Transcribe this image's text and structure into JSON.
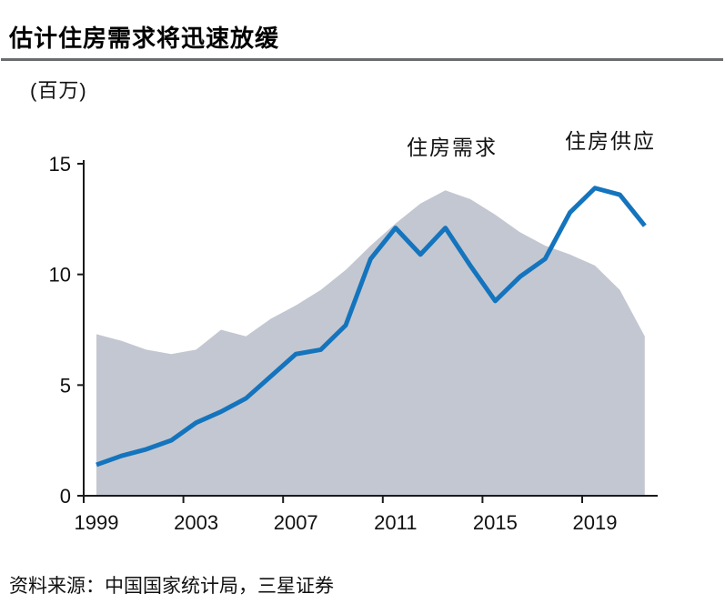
{
  "page": {
    "title": "估计住房需求将迅速放缓",
    "unit_label": "(百万)",
    "source": "资料来源：中国国家统计局，三星证券"
  },
  "chart_data": {
    "type": "area",
    "title": "估计住房需求将迅速放缓",
    "xlabel": "",
    "ylabel": "(百万)",
    "x": [
      1999,
      2000,
      2001,
      2002,
      2003,
      2004,
      2005,
      2006,
      2007,
      2008,
      2009,
      2010,
      2011,
      2012,
      2013,
      2014,
      2015,
      2016,
      2017,
      2018,
      2019,
      2020,
      2021
    ],
    "series": [
      {
        "name": "住房需求",
        "type": "area",
        "color": "#c3c7d1",
        "values": [
          7.3,
          7.0,
          6.6,
          6.4,
          6.6,
          7.5,
          7.2,
          8.0,
          8.6,
          9.3,
          10.2,
          11.3,
          12.3,
          13.2,
          13.8,
          13.4,
          12.7,
          11.9,
          11.3,
          10.9,
          10.4,
          9.3,
          7.2
        ]
      },
      {
        "name": "住房供应",
        "type": "line",
        "color": "#1474bd",
        "values": [
          1.4,
          1.8,
          2.1,
          2.5,
          3.3,
          3.8,
          4.4,
          5.4,
          6.4,
          6.6,
          7.7,
          10.7,
          12.1,
          10.9,
          12.1,
          10.4,
          8.8,
          9.9,
          10.7,
          12.8,
          13.9,
          13.6,
          12.2
        ]
      }
    ],
    "x_ticks": [
      1999,
      2003,
      2007,
      2011,
      2015,
      2019
    ],
    "y_ticks": [
      0,
      5,
      10,
      15
    ],
    "ylim": [
      0,
      15
    ],
    "grid": false,
    "legend_position": "annotations-above-curves",
    "axis_color": "#1a1a1a"
  }
}
